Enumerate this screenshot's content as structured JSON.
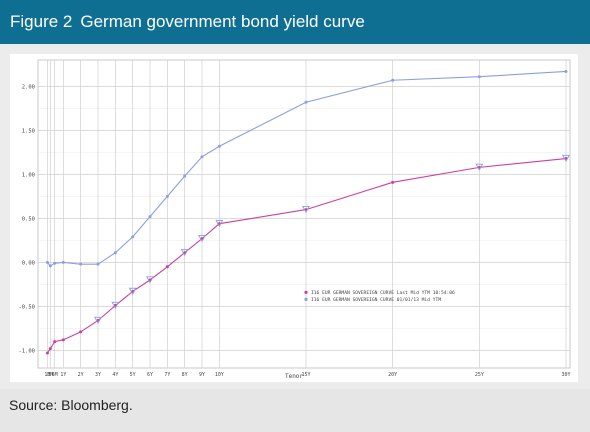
{
  "figure": {
    "label": "Figure 2",
    "title": "German government bond yield curve",
    "source": "Source: Bloomberg."
  },
  "colors": {
    "header_bg": "#0f6f93",
    "series_last": "#cc3f9e",
    "series_prior": "#8b9fdc",
    "grid": "#cfcfcf"
  },
  "chart_data": {
    "type": "line",
    "title": "",
    "xlabel": "Tenor",
    "ylabel": "",
    "ylim": [
      -1.2,
      2.3
    ],
    "y_ticks": [
      "-1.00",
      "-0.50",
      "0.00",
      "0.50",
      "1.00",
      "1.50",
      "2.00"
    ],
    "y_tick_values": [
      -1.0,
      -0.5,
      0.0,
      0.5,
      1.0,
      1.5,
      2.0
    ],
    "x": [
      "1M",
      "3M",
      "6M",
      "1Y",
      "2Y",
      "3Y",
      "4Y",
      "5Y",
      "6Y",
      "7Y",
      "8Y",
      "9Y",
      "10Y",
      "15Y",
      "20Y",
      "25Y",
      "30Y"
    ],
    "x_years": [
      0.0833,
      0.25,
      0.5,
      1,
      2,
      3,
      4,
      5,
      6,
      7,
      8,
      9,
      10,
      15,
      20,
      25,
      30
    ],
    "grid": true,
    "legend_position": "center-right",
    "series": [
      {
        "name": "I16 EUR GERMAN SOVEREIGN CURVE Last Mid YTM 10:54:06",
        "key": "last",
        "values": [
          -1.03,
          -0.98,
          -0.9,
          -0.88,
          -0.79,
          -0.66,
          -0.49,
          -0.33,
          -0.2,
          -0.05,
          0.11,
          0.27,
          0.44,
          0.6,
          0.91,
          1.08,
          1.18
        ]
      },
      {
        "name": "I16 EUR GERMAN SOVEREIGN CURVE 01/01/13 Mid YTM",
        "key": "prior",
        "values": [
          0.0,
          -0.04,
          -0.01,
          0.0,
          -0.02,
          -0.02,
          0.11,
          0.29,
          0.52,
          0.75,
          0.98,
          1.2,
          1.32,
          1.82,
          2.07,
          2.11,
          2.17
        ]
      }
    ]
  }
}
